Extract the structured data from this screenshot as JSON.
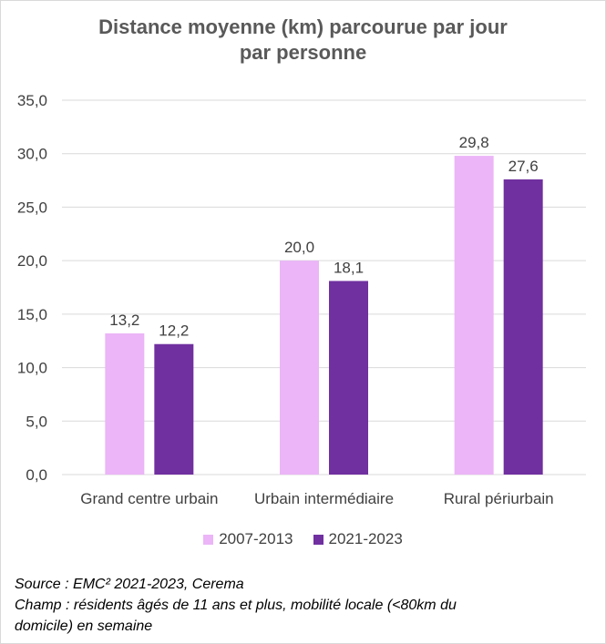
{
  "chart_data": {
    "type": "bar",
    "title_lines": [
      "Distance moyenne (km) parcourue par jour",
      "par personne"
    ],
    "categories": [
      "Grand centre urbain",
      "Urbain intermédiaire",
      "Rural périurbain"
    ],
    "series": [
      {
        "name": "2007-2013",
        "values": [
          13.2,
          20.0,
          29.8
        ],
        "labels": [
          "13,2",
          "20,0",
          "29,8"
        ],
        "color": "#EBB5F7"
      },
      {
        "name": "2021-2023",
        "values": [
          12.2,
          18.1,
          27.6
        ],
        "labels": [
          "12,2",
          "18,1",
          "27,6"
        ],
        "color": "#7030A0"
      }
    ],
    "ylim": [
      0,
      35
    ],
    "yticks": [
      0,
      5,
      10,
      15,
      20,
      25,
      30,
      35
    ],
    "ytick_labels": [
      "0,0",
      "5,0",
      "10,0",
      "15,0",
      "20,0",
      "25,0",
      "30,0",
      "35,0"
    ],
    "grid": true,
    "gridline_color": "#d9d9d9",
    "legend_position": "bottom"
  },
  "footnote": {
    "line1": "Source : EMC² 2021-2023, Cerema",
    "line2": "Champ : résidents âgés de 11 ans et plus, mobilité locale (<80km du",
    "line3": "domicile) en semaine"
  }
}
